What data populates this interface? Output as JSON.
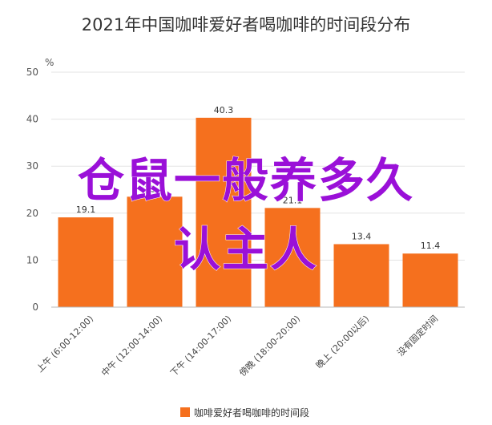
{
  "chart_data": {
    "type": "bar",
    "title": "2021年中国咖啡爱好者喝咖啡的时间段分布",
    "ylabel": "%",
    "xlabel": "",
    "ylim": [
      0,
      50
    ],
    "yticks": [
      0,
      10,
      20,
      30,
      40,
      50
    ],
    "grid": true,
    "legend_position": "bottom",
    "categories": [
      "上午 (6:00-12:00)",
      "中午 (12:00-14:00)",
      "下午 (14:00-17:00)",
      "傍晚 (18:00-20:00)",
      "晚上 (20:00以后)",
      "没有固定时间"
    ],
    "series": [
      {
        "name": "咖啡爱好者喝咖啡的时间段",
        "values": [
          19.1,
          23.5,
          40.3,
          21.1,
          13.4,
          11.4
        ],
        "labels": [
          "19.1",
          "23.5",
          "40.3",
          "21.1",
          "13.4",
          "11.4"
        ],
        "color": "#f5701e"
      }
    ]
  },
  "overlay": {
    "line1": "仓鼠一般养多久",
    "line2": "认主人",
    "color": "#9a10d8"
  }
}
